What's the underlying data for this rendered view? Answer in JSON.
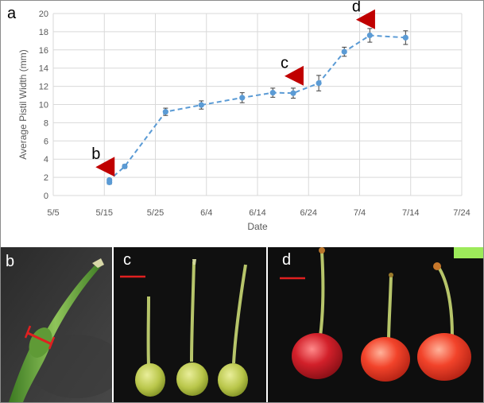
{
  "panel_labels": {
    "a": "a",
    "b": "b",
    "c": "c",
    "d": "d"
  },
  "colors": {
    "series": "#5b9bd5",
    "marker": "#c00000",
    "scale_bar": "#e02020",
    "photo_bg": "#0c0c0c"
  },
  "chart_data": {
    "type": "line",
    "xlabel": "Date",
    "ylabel": "Average Pistil Width (mm)",
    "x_ticks": [
      "5/5",
      "5/15",
      "5/25",
      "6/4",
      "6/14",
      "6/24",
      "7/4",
      "7/14",
      "7/24"
    ],
    "y_ticks": [
      "0",
      "2",
      "4",
      "6",
      "8",
      "10",
      "12",
      "14",
      "16",
      "18",
      "20"
    ],
    "xlim": [
      "5/5",
      "7/24"
    ],
    "ylim": [
      0,
      20
    ],
    "grid": true,
    "series": [
      {
        "x": [
          "5/16",
          "5/16",
          "5/19",
          "5/27",
          "6/3",
          "6/11",
          "6/17",
          "6/21",
          "6/26",
          "7/1",
          "7/6",
          "7/13"
        ],
        "y": [
          1.45,
          1.7,
          3.2,
          9.2,
          9.95,
          10.75,
          11.3,
          11.25,
          12.35,
          15.8,
          17.6,
          17.35
        ],
        "err": [
          0.2,
          0.15,
          0.2,
          0.4,
          0.45,
          0.55,
          0.5,
          0.55,
          0.85,
          0.5,
          0.75,
          0.75
        ],
        "style": "dashed",
        "color": "#5b9bd5"
      }
    ],
    "annotations": [
      {
        "label": "b",
        "x": "5/15",
        "y": 3.3
      },
      {
        "label": "c",
        "x": "6/21",
        "y": 13.3
      },
      {
        "label": "d",
        "x": "7/5",
        "y": 19.5
      }
    ]
  },
  "photos": [
    {
      "label": "b",
      "description_icon": "cherry-pistil-closeup",
      "scale_bar": false,
      "marker": "red-width-ring"
    },
    {
      "label": "c",
      "description_icon": "green-cherry-fruits",
      "scale_bar": true
    },
    {
      "label": "d",
      "description_icon": "red-cherry-fruits",
      "scale_bar": true
    }
  ]
}
